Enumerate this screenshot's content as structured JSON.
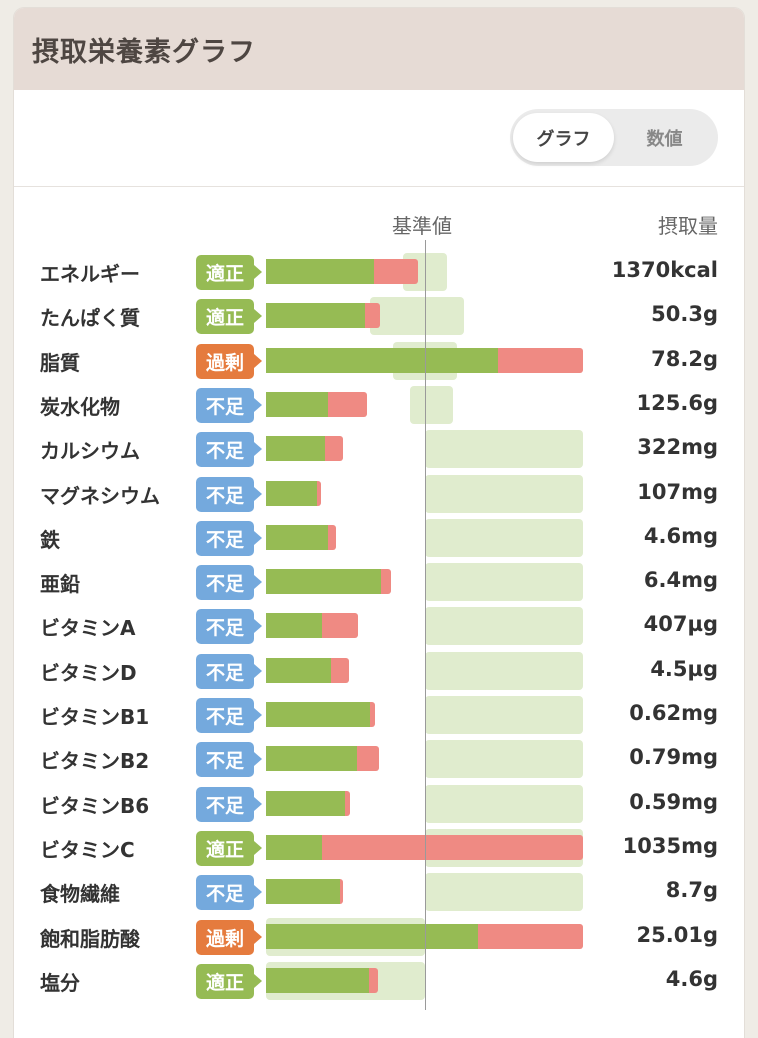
{
  "header": {
    "title": "摂取栄養素グラフ"
  },
  "view_toggle": {
    "graph_label": "グラフ",
    "number_label": "数値",
    "selected": "グラフ"
  },
  "columns": {
    "reference": "基準値",
    "intake": "摂取量"
  },
  "status_colors": {
    "適正": "#96bb54",
    "不足": "#74a9dd",
    "過剰": "#e57b3e"
  },
  "nutrients": [
    {
      "name": "エネルギー",
      "status": "適正",
      "status_class": "ok",
      "value": "1370kcal",
      "green_end": 374,
      "red_end": 418,
      "ref_start": 403,
      "ref_end": 447
    },
    {
      "name": "たんぱく質",
      "status": "適正",
      "status_class": "ok",
      "value": "50.3g",
      "green_end": 365,
      "red_end": 380,
      "ref_start": 370,
      "ref_end": 464
    },
    {
      "name": "脂質",
      "status": "過剰",
      "status_class": "over",
      "value": "78.2g",
      "green_end": 498,
      "red_end": 583,
      "ref_start": 393,
      "ref_end": 457
    },
    {
      "name": "炭水化物",
      "status": "不足",
      "status_class": "low",
      "value": "125.6g",
      "green_end": 328,
      "red_end": 367,
      "ref_start": 410,
      "ref_end": 453
    },
    {
      "name": "カルシウム",
      "status": "不足",
      "status_class": "low",
      "value": "322mg",
      "green_end": 325,
      "red_end": 343,
      "ref_start": 425,
      "ref_end": 583
    },
    {
      "name": "マグネシウム",
      "status": "不足",
      "status_class": "low",
      "value": "107mg",
      "green_end": 317,
      "red_end": 321,
      "ref_start": 425,
      "ref_end": 583
    },
    {
      "name": "鉄",
      "status": "不足",
      "status_class": "low",
      "value": "4.6mg",
      "green_end": 328,
      "red_end": 336,
      "ref_start": 425,
      "ref_end": 583
    },
    {
      "name": "亜鉛",
      "status": "不足",
      "status_class": "low",
      "value": "6.4mg",
      "green_end": 381,
      "red_end": 391,
      "ref_start": 425,
      "ref_end": 583
    },
    {
      "name": "ビタミンA",
      "status": "不足",
      "status_class": "low",
      "value": "407µg",
      "green_end": 322,
      "red_end": 358,
      "ref_start": 425,
      "ref_end": 583
    },
    {
      "name": "ビタミンD",
      "status": "不足",
      "status_class": "low",
      "value": "4.5µg",
      "green_end": 331,
      "red_end": 349,
      "ref_start": 425,
      "ref_end": 583
    },
    {
      "name": "ビタミンB1",
      "status": "不足",
      "status_class": "low",
      "value": "0.62mg",
      "green_end": 370,
      "red_end": 375,
      "ref_start": 425,
      "ref_end": 583
    },
    {
      "name": "ビタミンB2",
      "status": "不足",
      "status_class": "low",
      "value": "0.79mg",
      "green_end": 357,
      "red_end": 379,
      "ref_start": 425,
      "ref_end": 583
    },
    {
      "name": "ビタミンB6",
      "status": "不足",
      "status_class": "low",
      "value": "0.59mg",
      "green_end": 345,
      "red_end": 350,
      "ref_start": 425,
      "ref_end": 583
    },
    {
      "name": "ビタミンC",
      "status": "適正",
      "status_class": "ok",
      "value": "1035mg",
      "green_end": 322,
      "red_end": 583,
      "ref_start": 425,
      "ref_end": 583
    },
    {
      "name": "食物繊維",
      "status": "不足",
      "status_class": "low",
      "value": "8.7g",
      "green_end": 340,
      "red_end": 343,
      "ref_start": 425,
      "ref_end": 583
    },
    {
      "name": "飽和脂肪酸",
      "status": "過剰",
      "status_class": "over",
      "value": "25.01g",
      "green_end": 478,
      "red_end": 583,
      "ref_start": 266,
      "ref_end": 425
    },
    {
      "name": "塩分",
      "status": "適正",
      "status_class": "ok",
      "value": "4.6g",
      "green_end": 369,
      "red_end": 378,
      "ref_start": 266,
      "ref_end": 425
    }
  ]
}
